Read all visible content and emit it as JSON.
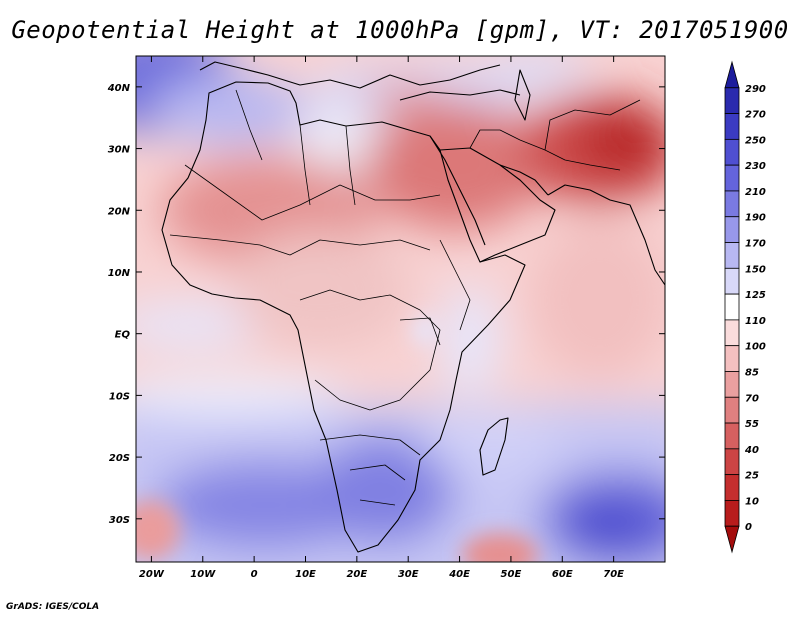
{
  "title": "Geopotential Height at 1000hPa [gpm], VT: 2017051900",
  "credit": "GrADS: IGES/COLA",
  "map": {
    "variable": "Geopotential Height",
    "level": "1000hPa",
    "units": "gpm",
    "valid_time": "2017051900",
    "lon_range": [
      -23,
      80
    ],
    "lat_range": [
      -37,
      45
    ],
    "lon_ticks": [
      {
        "value": -20,
        "label": "20W"
      },
      {
        "value": -10,
        "label": "10W"
      },
      {
        "value": 0,
        "label": "0"
      },
      {
        "value": 10,
        "label": "10E"
      },
      {
        "value": 20,
        "label": "20E"
      },
      {
        "value": 30,
        "label": "30E"
      },
      {
        "value": 40,
        "label": "40E"
      },
      {
        "value": 50,
        "label": "50E"
      },
      {
        "value": 60,
        "label": "60E"
      },
      {
        "value": 70,
        "label": "70E"
      }
    ],
    "lat_ticks": [
      {
        "value": 40,
        "label": "40N"
      },
      {
        "value": 30,
        "label": "30N"
      },
      {
        "value": 20,
        "label": "20N"
      },
      {
        "value": 10,
        "label": "10N"
      },
      {
        "value": 0,
        "label": "EQ"
      },
      {
        "value": -10,
        "label": "10S"
      },
      {
        "value": -20,
        "label": "20S"
      },
      {
        "value": -30,
        "label": "30S"
      }
    ]
  },
  "colorbar": {
    "levels": [
      "290",
      "270",
      "250",
      "230",
      "210",
      "190",
      "170",
      "150",
      "125",
      "110",
      "100",
      "85",
      "70",
      "55",
      "40",
      "25",
      "10",
      "0"
    ],
    "colors": [
      "#1c1c9c",
      "#2a2aae",
      "#3b3bc2",
      "#4f4fd2",
      "#6464dc",
      "#7a7ae2",
      "#9898ea",
      "#b8b8f2",
      "#d8d8f8",
      "#ffffff",
      "#fadcdc",
      "#f4c0c0",
      "#eaa0a0",
      "#e08080",
      "#d66060",
      "#cc4444",
      "#c42e2e",
      "#b81c1c",
      "#a40c0c"
    ]
  }
}
